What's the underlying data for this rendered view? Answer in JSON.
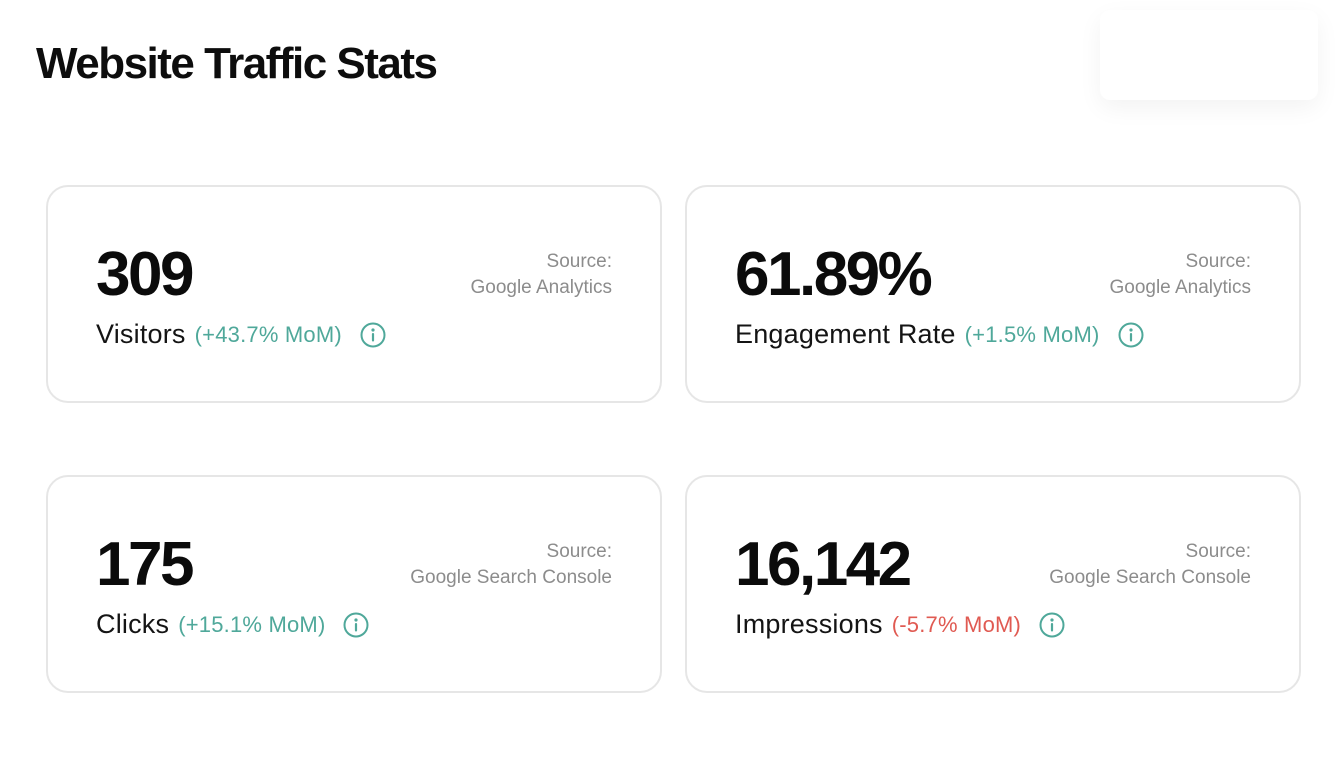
{
  "header": {
    "title": "Website Traffic Stats"
  },
  "colors": {
    "positive": "#4fa89a",
    "negative": "#e05a52",
    "source_text": "#8c8c8c",
    "card_border": "#e6e6e6"
  },
  "cards": [
    {
      "value": "309",
      "label": "Visitors",
      "change": "(+43.7% MoM)",
      "trend": "up",
      "source_label": "Source:",
      "source_name": "Google Analytics",
      "icon": "info-icon"
    },
    {
      "value": "61.89%",
      "label": "Engagement Rate",
      "change": "(+1.5% MoM)",
      "trend": "up",
      "source_label": "Source:",
      "source_name": "Google Analytics",
      "icon": "info-icon"
    },
    {
      "value": "175",
      "label": "Clicks",
      "change": "(+15.1% MoM)",
      "trend": "up",
      "source_label": "Source:",
      "source_name": "Google Search Console",
      "icon": "info-icon"
    },
    {
      "value": "16,142",
      "label": "Impressions",
      "change": "(-5.7% MoM)",
      "trend": "down",
      "source_label": "Source:",
      "source_name": "Google Search Console",
      "icon": "info-icon"
    }
  ]
}
